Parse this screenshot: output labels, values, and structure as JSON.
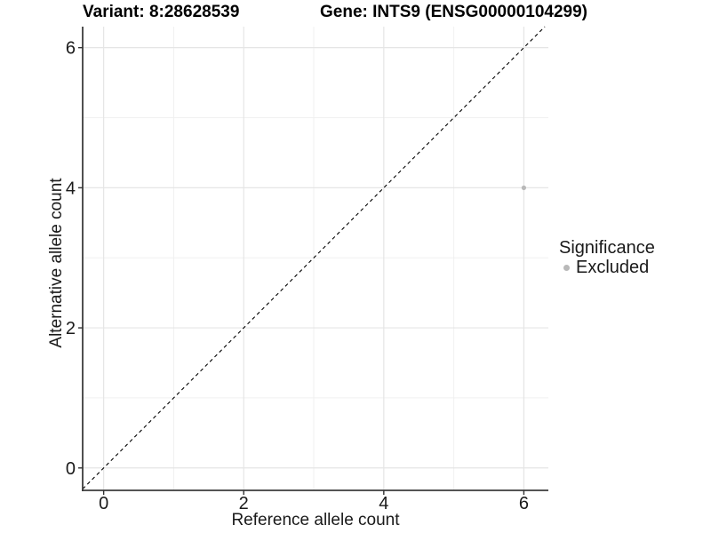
{
  "title": {
    "variant": "Variant: 8:28628539",
    "gene": "Gene: INTS9 (ENSG00000104299)"
  },
  "chart_data": {
    "type": "scatter",
    "title": "Variant: 8:28628539   Gene: INTS9 (ENSG00000104299)",
    "xlabel": "Reference allele count",
    "ylabel": "Alternative allele count",
    "xlim": [
      -0.3,
      6.35
    ],
    "ylim": [
      -0.32,
      6.3
    ],
    "x_major_ticks": [
      0,
      2,
      4,
      6
    ],
    "y_major_ticks": [
      0,
      2,
      4,
      6
    ],
    "x_minor_ticks": [
      1,
      3,
      5
    ],
    "y_minor_ticks": [
      1,
      3,
      5
    ],
    "grid": true,
    "points": [
      {
        "x": 6,
        "y": 4,
        "series": "Excluded"
      }
    ],
    "reference_line": {
      "kind": "identity",
      "equation": "y = x",
      "style": "dashed",
      "color": "#000000"
    },
    "legend": {
      "title": "Significance",
      "position": "right",
      "entries": [
        {
          "label": "Excluded",
          "marker": "circle",
          "color": "#b9b9b9"
        }
      ]
    }
  },
  "colors": {
    "point": "#b9b9b9",
    "grid_major": "#e5e5e5",
    "grid_minor": "#f0f0f0",
    "axis_line": "#3c3c3c",
    "tick": "#333333",
    "tick_label": "#1a1a1a",
    "dashed_line": "#000000",
    "background": "#ffffff"
  }
}
